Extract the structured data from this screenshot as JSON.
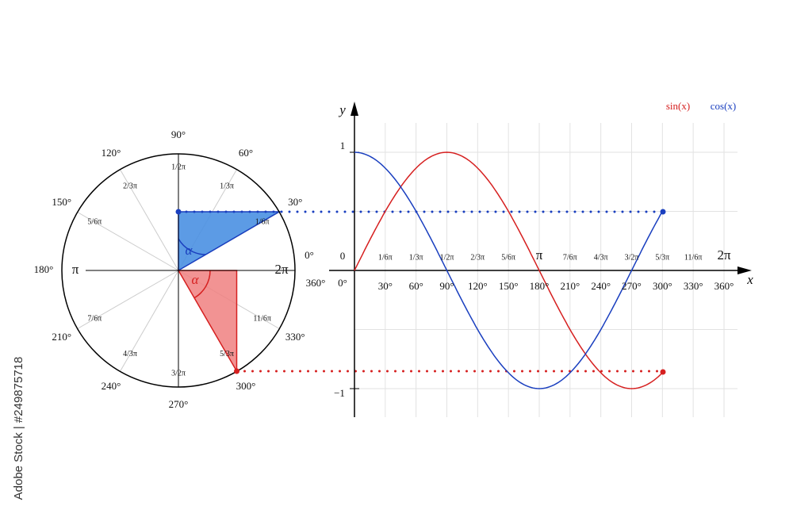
{
  "unit_circle": {
    "degree_labels": [
      "0°",
      "30°",
      "60°",
      "90°",
      "120°",
      "150°",
      "180°",
      "210°",
      "240°",
      "270°",
      "300°",
      "330°",
      "360°"
    ],
    "radian_labels": [
      "2π",
      "1/6π",
      "1/3π",
      "1/2π",
      "2/3π",
      "5/6π",
      "π",
      "7/6π",
      "4/3π",
      "3/2π",
      "5/3π",
      "11/6π"
    ],
    "angle_label": "α"
  },
  "graph": {
    "y_axis_label": "y",
    "x_axis_label": "x",
    "y_labels": [
      "1",
      "0",
      "−1"
    ],
    "degree_labels": [
      "0°",
      "30°",
      "60°",
      "90°",
      "120°",
      "150°",
      "180°",
      "210°",
      "240°",
      "270°",
      "300°",
      "330°",
      "360°"
    ],
    "radian_labels": [
      "1/6π",
      "1/3π",
      "1/2π",
      "2/3π",
      "5/6π",
      "π",
      "7/6π",
      "4/3π",
      "3/2π",
      "5/3π",
      "11/6π",
      "2π"
    ],
    "legend": [
      "sin(x)",
      "cos(x)"
    ]
  },
  "watermark": "Adobe Stock | #249875718"
}
